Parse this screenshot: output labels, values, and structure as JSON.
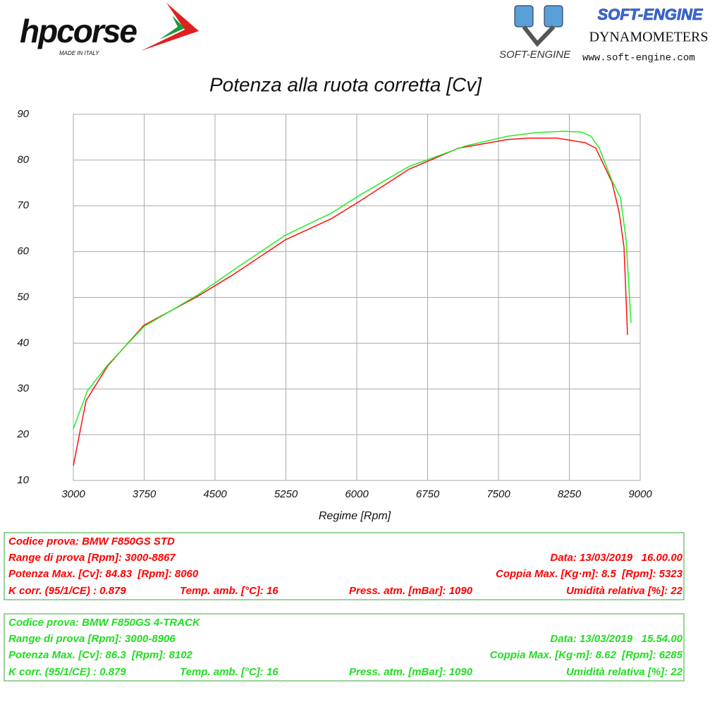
{
  "header": {
    "brand": "hpcorse",
    "brand_tagline": "MADE IN ITALY",
    "dyno_brand": "SOFT-ENGINE",
    "dyno_subtitle": "DYNAMOMETERS",
    "dyno_logo_text": "SOFT-ENGINE",
    "dyno_url": "www.soft-engine.com"
  },
  "chart_data": {
    "type": "line",
    "title": "Potenza alla ruota corretta [Cv]",
    "x_label": "Regime [Rpm]",
    "xlim": [
      3000,
      9000
    ],
    "xticks": [
      3000,
      3750,
      4500,
      5250,
      6000,
      6750,
      7500,
      8250,
      9000
    ],
    "ylim": [
      10,
      90
    ],
    "yticks": [
      10,
      20,
      30,
      40,
      50,
      60,
      70,
      80,
      90
    ],
    "grid": true,
    "series": [
      {
        "color": "#ff1010",
        "x": [
          3000,
          3134,
          3366,
          3746,
          4313,
          4687,
          5246,
          5731,
          6030,
          6552,
          7075,
          7597,
          7821,
          8119,
          8418,
          8530,
          8701,
          8776,
          8828,
          8866
        ],
        "values": [
          13.2,
          27.4,
          35.1,
          43.9,
          50.2,
          54.9,
          62.6,
          67.2,
          71.0,
          78.0,
          82.6,
          84.5,
          84.8,
          84.8,
          83.8,
          82.6,
          75.2,
          68.7,
          61.0,
          41.8
        ]
      },
      {
        "color": "#22ee22",
        "x": [
          3000,
          3149,
          3366,
          3746,
          4313,
          4761,
          5246,
          5731,
          6030,
          6552,
          7149,
          7597,
          7896,
          8194,
          8381,
          8478,
          8567,
          8701,
          8791,
          8851,
          8903
        ],
        "values": [
          21.3,
          29.6,
          35.3,
          43.6,
          50.5,
          56.9,
          63.6,
          68.4,
          72.3,
          78.6,
          83.1,
          85.2,
          86.0,
          86.3,
          86.1,
          85.2,
          82.6,
          75.5,
          71.8,
          62.6,
          44.4
        ]
      }
    ]
  },
  "info_panels": [
    {
      "color": "#ff0000",
      "rows": [
        [
          "Codice prova: BMW F850GS STD"
        ],
        [
          "Range di prova [Rpm]: 3000-8867",
          "Data: 13/03/2019   16.00.00"
        ],
        [
          "Potenza Max. [Cv]: 84.83  [Rpm]: 8060",
          "Coppia Max. [Kg·m]: 8.5  [Rpm]: 5323"
        ],
        [
          "K corr. (95/1/CE) : 0.879",
          "Temp. amb. [°C]: 16",
          "Press. atm. [mBar]: 1090",
          "Umidità relativa [%]: 22"
        ]
      ]
    },
    {
      "color": "#22dd22",
      "rows": [
        [
          "Codice prova: BMW F850GS 4-TRACK"
        ],
        [
          "Range di prova [Rpm]: 3000-8906",
          "Data: 13/03/2019   15.54.00"
        ],
        [
          "Potenza Max. [Cv]: 86.3  [Rpm]: 8102",
          "Coppia Max. [Kg·m]: 8.62  [Rpm]: 6285"
        ],
        [
          "K corr. (95/1/CE) : 0.879",
          "Temp. amb. [°C]: 16",
          "Press. atm. [mBar]: 1090",
          "Umidità relativa [%]: 22"
        ]
      ]
    }
  ]
}
